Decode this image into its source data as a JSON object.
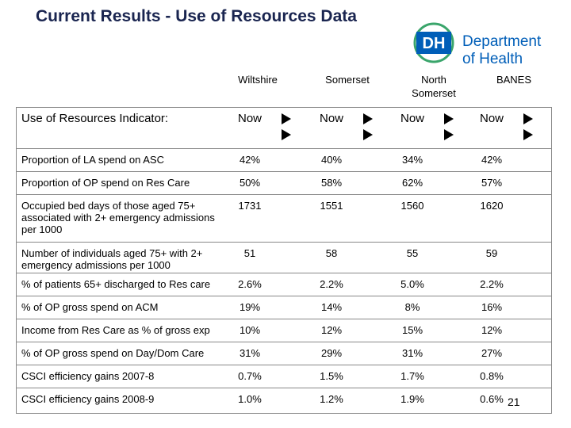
{
  "header": {
    "title": "Current Results - Use of Resources Data",
    "logo": {
      "mark": "DH",
      "line1": "Department",
      "line2": "of Health"
    }
  },
  "table": {
    "regions": [
      "Wiltshire",
      "Somerset",
      "North Somerset",
      "BANES"
    ],
    "corner": "Use of Resources Indicator:",
    "period": [
      "Now",
      "Now",
      "Now",
      "Now"
    ],
    "rows": [
      [
        "Proportion of LA spend on ASC",
        "42%",
        "40%",
        "34%",
        "42%"
      ],
      [
        "Proportion of OP spend on Res Care",
        "50%",
        "58%",
        "62%",
        "57%"
      ],
      [
        "Occupied bed days of those aged 75+ associated with 2+ emergency admissions per 1000",
        "1731",
        "1551",
        "1560",
        "1620"
      ],
      [
        "Number of individuals aged 75+ with 2+ emergency admissions per 1000",
        "51",
        "58",
        "55",
        "59"
      ],
      [
        "% of patients 65+ discharged to Res care",
        "2.6%",
        "2.2%",
        "5.0%",
        "2.2%"
      ],
      [
        "% of OP gross spend on ACM",
        "19%",
        "14%",
        "8%",
        "16%"
      ],
      [
        "Income from Res Care as % of gross exp",
        "10%",
        "12%",
        "15%",
        "12%"
      ],
      [
        "% of OP gross spend on Day/Dom Care",
        "31%",
        "29%",
        "31%",
        "27%"
      ],
      [
        "CSCI efficiency gains 2007-8",
        "0.7%",
        "1.5%",
        "1.7%",
        "0.8%"
      ],
      [
        "CSCI efficiency gains 2008-9",
        "1.0%",
        "1.2%",
        "1.9%",
        "0.6%"
      ]
    ]
  },
  "footer": {
    "page_number": "21"
  }
}
